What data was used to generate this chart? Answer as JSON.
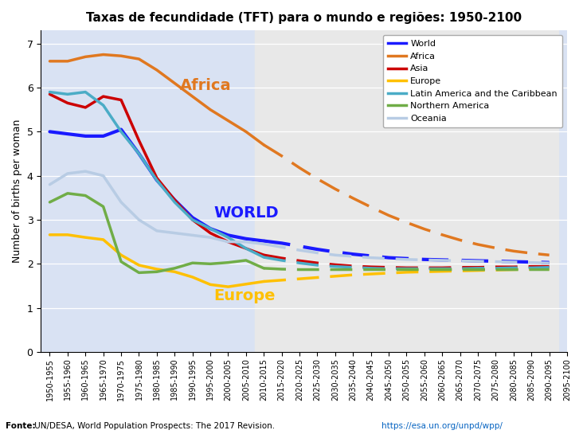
{
  "title": "Taxas de fecundidade (TFT) para o mundo e regiões: 1950-2100",
  "ylabel": "Number of births per woman",
  "fonte_bold": "Fonte:",
  "fonte_rest": " UN/DESA, World Population Prospects: The 2017 Revision.  ",
  "fonte_link": "https://esa.un.org/unpd/wpp/",
  "bg_hist_color": "#d9e2f3",
  "bg_fut_color": "#e8e8e8",
  "x_labels": [
    "1950-1955",
    "1955-1960",
    "1960-1965",
    "1965-1970",
    "1970-1975",
    "1975-1980",
    "1980-1985",
    "1985-1990",
    "1990-1995",
    "1995-2000",
    "2000-2005",
    "2005-2010",
    "2010-2015",
    "2015-2020",
    "2020-2025",
    "2025-2030",
    "2030-2035",
    "2035-2040",
    "2040-2045",
    "2045-2050",
    "2050-2055",
    "2055-2060",
    "2060-2065",
    "2065-2070",
    "2070-2075",
    "2075-2080",
    "2080-2085",
    "2085-2090",
    "2090-2095",
    "2095-2100"
  ],
  "n_hist": 13,
  "n_fut": 17,
  "series": [
    {
      "name": "World",
      "color": "#1a1aff",
      "lw": 3.0,
      "hist": [
        5.0,
        4.95,
        4.9,
        4.9,
        5.05,
        4.5,
        3.9,
        3.45,
        3.05,
        2.8,
        2.65,
        2.57,
        2.52
      ],
      "fut": [
        2.52,
        2.47,
        2.4,
        2.33,
        2.27,
        2.22,
        2.18,
        2.14,
        2.12,
        2.1,
        2.09,
        2.08,
        2.07,
        2.06,
        2.05,
        2.04,
        2.03
      ]
    },
    {
      "name": "Africa",
      "color": "#e07820",
      "lw": 2.5,
      "hist": [
        6.6,
        6.6,
        6.7,
        6.75,
        6.72,
        6.65,
        6.4,
        6.1,
        5.8,
        5.5,
        5.25,
        5.0,
        4.7
      ],
      "fut": [
        4.7,
        4.45,
        4.18,
        3.93,
        3.7,
        3.49,
        3.29,
        3.1,
        2.94,
        2.79,
        2.66,
        2.54,
        2.44,
        2.36,
        2.29,
        2.24,
        2.2
      ]
    },
    {
      "name": "Asia",
      "color": "#cc0000",
      "lw": 2.5,
      "hist": [
        5.85,
        5.65,
        5.55,
        5.8,
        5.72,
        4.8,
        3.95,
        3.45,
        3.0,
        2.7,
        2.5,
        2.35,
        2.2
      ],
      "fut": [
        2.2,
        2.13,
        2.07,
        2.02,
        1.98,
        1.95,
        1.93,
        1.92,
        1.91,
        1.91,
        1.91,
        1.92,
        1.92,
        1.93,
        1.93,
        1.94,
        1.94
      ]
    },
    {
      "name": "Europe",
      "color": "#ffc000",
      "lw": 2.5,
      "hist": [
        2.66,
        2.66,
        2.6,
        2.55,
        2.2,
        1.97,
        1.88,
        1.82,
        1.7,
        1.53,
        1.48,
        1.54,
        1.6
      ],
      "fut": [
        1.6,
        1.63,
        1.66,
        1.69,
        1.72,
        1.75,
        1.77,
        1.79,
        1.81,
        1.82,
        1.83,
        1.84,
        1.85,
        1.86,
        1.87,
        1.88,
        1.88
      ]
    },
    {
      "name": "Latin America and the Caribbean",
      "color": "#4bacc6",
      "lw": 2.5,
      "hist": [
        5.9,
        5.85,
        5.9,
        5.6,
        5.0,
        4.5,
        3.9,
        3.4,
        3.0,
        2.8,
        2.6,
        2.35,
        2.15
      ],
      "fut": [
        2.15,
        2.08,
        2.02,
        1.97,
        1.94,
        1.92,
        1.9,
        1.89,
        1.89,
        1.89,
        1.89,
        1.89,
        1.9,
        1.9,
        1.91,
        1.91,
        1.92
      ]
    },
    {
      "name": "Northern America",
      "color": "#70ad47",
      "lw": 2.5,
      "hist": [
        3.4,
        3.6,
        3.55,
        3.3,
        2.05,
        1.8,
        1.82,
        1.9,
        2.02,
        2.0,
        2.03,
        2.08,
        1.9
      ],
      "fut": [
        1.9,
        1.88,
        1.87,
        1.87,
        1.87,
        1.87,
        1.87,
        1.87,
        1.87,
        1.87,
        1.87,
        1.87,
        1.87,
        1.87,
        1.87,
        1.87,
        1.87
      ]
    },
    {
      "name": "Oceania",
      "color": "#b8cce4",
      "lw": 2.5,
      "hist": [
        3.8,
        4.05,
        4.1,
        4.0,
        3.4,
        3.0,
        2.75,
        2.7,
        2.65,
        2.6,
        2.5,
        2.5,
        2.45
      ],
      "fut": [
        2.45,
        2.38,
        2.31,
        2.25,
        2.2,
        2.17,
        2.14,
        2.12,
        2.1,
        2.09,
        2.08,
        2.07,
        2.06,
        2.05,
        2.04,
        2.03,
        2.02
      ]
    }
  ],
  "annotations": [
    {
      "text": "Africa",
      "xi": 7.3,
      "y": 6.05,
      "color": "#e07820",
      "fontsize": 14
    },
    {
      "text": "WORLD",
      "xi": 9.2,
      "y": 3.15,
      "color": "#1a1aff",
      "fontsize": 14
    },
    {
      "text": "Europe",
      "xi": 9.2,
      "y": 1.28,
      "color": "#ffc000",
      "fontsize": 14
    }
  ],
  "ylim": [
    0,
    7.3
  ],
  "yticks": [
    0,
    1,
    2,
    3,
    4,
    5,
    6,
    7
  ],
  "legend_fontsize": 8,
  "title_fontsize": 11,
  "ylabel_fontsize": 9
}
